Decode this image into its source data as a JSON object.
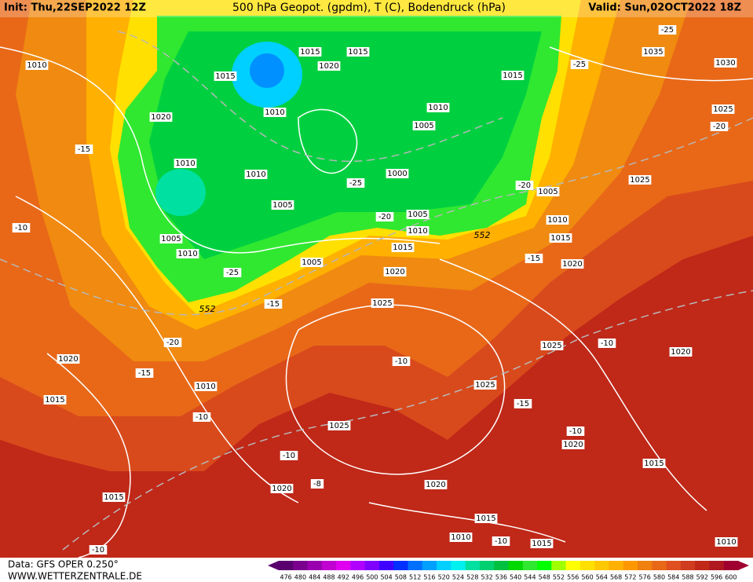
{
  "header": {
    "init": "Init: Thu,22SEP2022 12Z",
    "title": "500 hPa Geopot. (gpdm), T (C), Bodendruck (hPa)",
    "valid": "Valid: Sun,02OCT2022 18Z"
  },
  "footer": {
    "data": "Data: GFS OPER 0.250°",
    "site": "WWW.WETTERZENTRALE.DE"
  },
  "map": {
    "labels": [
      "1010",
      "1015",
      "1015",
      "1020",
      "1015",
      "1035",
      "1030",
      "-25",
      "-25",
      "1015",
      "1020",
      "1010",
      "1010",
      "1005",
      "1025",
      "-20",
      "-15",
      "1010",
      "1010",
      "1000",
      "-25",
      "-20",
      "1005",
      "1025",
      "1005",
      "1005",
      "-20",
      "1010",
      "-10",
      "1010",
      "1015",
      "1005",
      "1010",
      "1015",
      "-15",
      "1020",
      "1005",
      "-25",
      "1020",
      "-15",
      "1025",
      "-20",
      "1025",
      "-10",
      "1020",
      "1020",
      "-10",
      "-15",
      "1010",
      "1025",
      "1015",
      "-15",
      "-10",
      "1025",
      "-10",
      "1020",
      "-10",
      "1015",
      "1020",
      "-8",
      "1020",
      "1015",
      "1015",
      "1010",
      "-10",
      "1015",
      "1010",
      "-10",
      "552",
      "552"
    ]
  },
  "colorbar": {
    "ticks": [
      {
        "label": "476",
        "color": "#5a006e"
      },
      {
        "label": "480",
        "color": "#7a008e"
      },
      {
        "label": "484",
        "color": "#9a00ae"
      },
      {
        "label": "488",
        "color": "#c000d0"
      },
      {
        "label": "492",
        "color": "#e000f0"
      },
      {
        "label": "496",
        "color": "#b000ff"
      },
      {
        "label": "500",
        "color": "#8000ff"
      },
      {
        "label": "504",
        "color": "#4000ff"
      },
      {
        "label": "508",
        "color": "#0030ff"
      },
      {
        "label": "512",
        "color": "#0070ff"
      },
      {
        "label": "516",
        "color": "#00a0ff"
      },
      {
        "label": "520",
        "color": "#00d0ff"
      },
      {
        "label": "524",
        "color": "#00f0f0"
      },
      {
        "label": "528",
        "color": "#00e0a0"
      },
      {
        "label": "532",
        "color": "#00d070"
      },
      {
        "label": "536",
        "color": "#00c040"
      },
      {
        "label": "540",
        "color": "#00d800"
      },
      {
        "label": "544",
        "color": "#30e830"
      },
      {
        "label": "548",
        "color": "#00ff00"
      },
      {
        "label": "552",
        "color": "#a0ff00"
      },
      {
        "label": "556",
        "color": "#ffff00"
      },
      {
        "label": "560",
        "color": "#ffe000"
      },
      {
        "label": "564",
        "color": "#ffc800"
      },
      {
        "label": "568",
        "color": "#ffb000"
      },
      {
        "label": "572",
        "color": "#ff9800"
      },
      {
        "label": "576",
        "color": "#f08010"
      },
      {
        "label": "580",
        "color": "#e86818"
      },
      {
        "label": "584",
        "color": "#e05020"
      },
      {
        "label": "588",
        "color": "#d03c20"
      },
      {
        "label": "592",
        "color": "#c02818"
      },
      {
        "label": "596",
        "color": "#b01820"
      },
      {
        "label": "600",
        "color": "#a00030"
      }
    ]
  }
}
